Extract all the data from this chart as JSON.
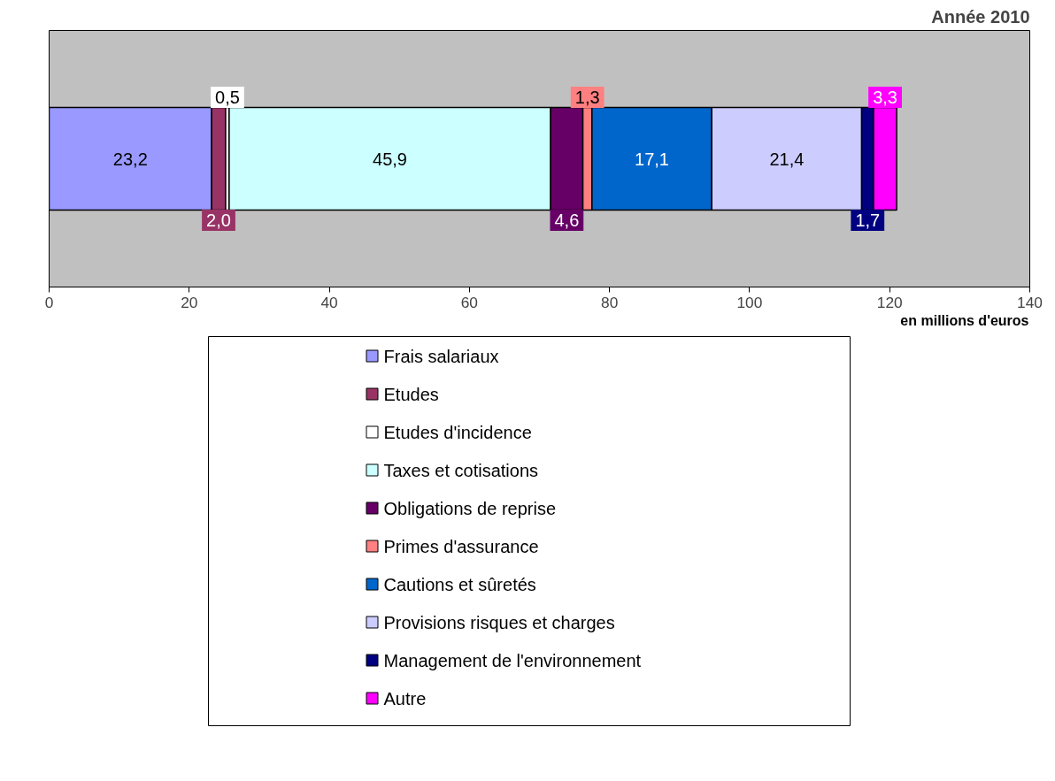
{
  "chart_data": {
    "type": "bar",
    "orientation": "horizontal",
    "stacked": true,
    "title": "Année 2010",
    "xlabel": "en millions d'euros",
    "categories": [
      null
    ],
    "series": [
      {
        "name": "Frais salariaux",
        "color": "#9999ff",
        "values": [
          23.2
        ],
        "value_labels": [
          "23,2"
        ]
      },
      {
        "name": "Etudes",
        "color": "#993366",
        "values": [
          2.0
        ],
        "value_labels": [
          "2,0"
        ]
      },
      {
        "name": "Etudes d'incidence",
        "color": "#ffffff",
        "values": [
          0.5
        ],
        "value_labels": [
          "0,5"
        ]
      },
      {
        "name": "Taxes et cotisations",
        "color": "#ccffff",
        "values": [
          45.9
        ],
        "value_labels": [
          "45,9"
        ]
      },
      {
        "name": "Obligations de reprise",
        "color": "#660066",
        "values": [
          4.6
        ],
        "value_labels": [
          "4,6"
        ]
      },
      {
        "name": "Primes d'assurance",
        "color": "#ff8080",
        "values": [
          1.3
        ],
        "value_labels": [
          "1,3"
        ]
      },
      {
        "name": "Cautions et sûretés",
        "color": "#0066cc",
        "values": [
          17.1
        ],
        "value_labels": [
          "17,1"
        ]
      },
      {
        "name": "Provisions risques et charges",
        "color": "#ccccff",
        "values": [
          21.4
        ],
        "value_labels": [
          "21,4"
        ]
      },
      {
        "name": "Management de l'environnement",
        "color": "#000080",
        "values": [
          1.7
        ],
        "value_labels": [
          "1,7"
        ]
      },
      {
        "name": "Autre",
        "color": "#ff00ff",
        "values": [
          3.3
        ],
        "value_labels": [
          "3,3"
        ]
      }
    ],
    "xlim": [
      0,
      140
    ],
    "xticks": [
      0,
      20,
      40,
      60,
      80,
      100,
      120,
      140
    ],
    "tick_labels": "x",
    "grid": false,
    "legend": "bottom"
  }
}
